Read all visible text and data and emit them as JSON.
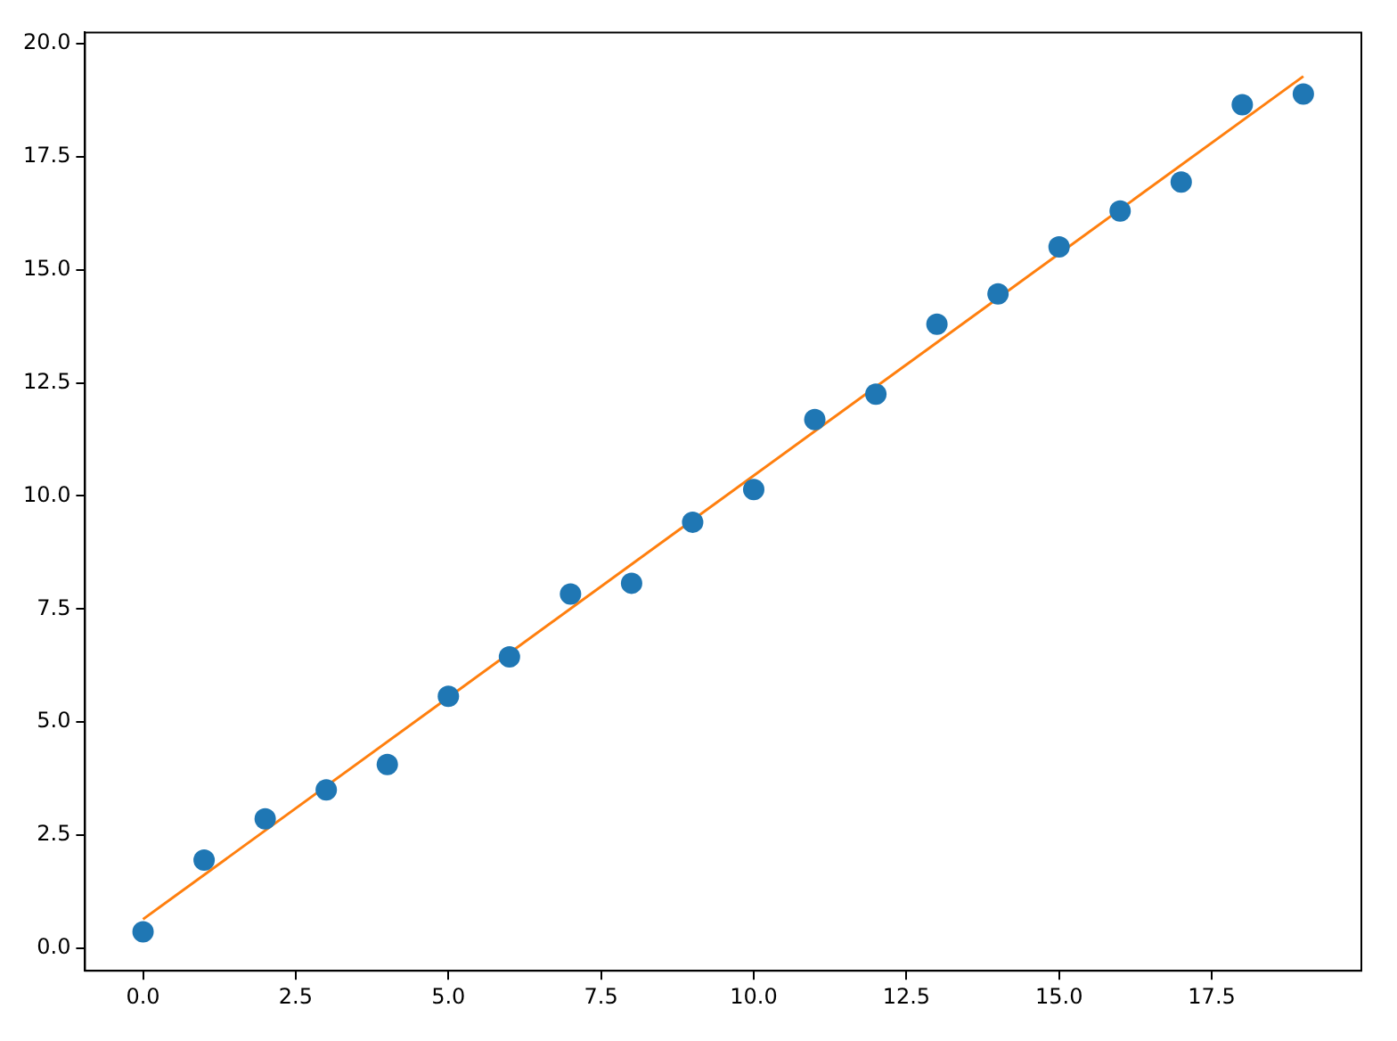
{
  "chart_data": {
    "type": "scatter",
    "x": [
      0,
      1,
      2,
      3,
      4,
      5,
      6,
      7,
      8,
      9,
      10,
      11,
      12,
      13,
      14,
      15,
      16,
      17,
      18,
      19
    ],
    "series": [
      {
        "color": "#1f77b4",
        "marker": "circle",
        "values": [
          0.36,
          1.95,
          2.86,
          3.5,
          4.06,
          5.57,
          6.44,
          7.83,
          8.07,
          9.42,
          10.14,
          11.69,
          12.25,
          13.8,
          14.47,
          15.51,
          16.3,
          16.94,
          18.65,
          18.89
        ]
      },
      {
        "type": "line",
        "marker": "none",
        "color": "#ff7f0e",
        "x": [
          0,
          19
        ],
        "values": [
          0.64,
          19.28
        ]
      }
    ],
    "xlim": [
      -0.95,
      19.95
    ],
    "ylim": [
      -0.5,
      20.25
    ],
    "xticks": [
      {
        "value": 0,
        "label": "0.0"
      },
      {
        "value": 2.5,
        "label": "2.5"
      },
      {
        "value": 5,
        "label": "5.0"
      },
      {
        "value": 7.5,
        "label": "7.5"
      },
      {
        "value": 10,
        "label": "10.0"
      },
      {
        "value": 12.5,
        "label": "12.5"
      },
      {
        "value": 15,
        "label": "15.0"
      },
      {
        "value": 17.5,
        "label": "17.5"
      }
    ],
    "yticks": [
      {
        "value": 0,
        "label": "0.0"
      },
      {
        "value": 2.5,
        "label": "2.5"
      },
      {
        "value": 5,
        "label": "5.0"
      },
      {
        "value": 7.5,
        "label": "7.5"
      },
      {
        "value": 10,
        "label": "10.0"
      },
      {
        "value": 12.5,
        "label": "12.5"
      },
      {
        "value": 15,
        "label": "15.0"
      },
      {
        "value": 17.5,
        "label": "17.5"
      },
      {
        "value": 20,
        "label": "20.0"
      }
    ],
    "grid": false,
    "legend": false
  }
}
